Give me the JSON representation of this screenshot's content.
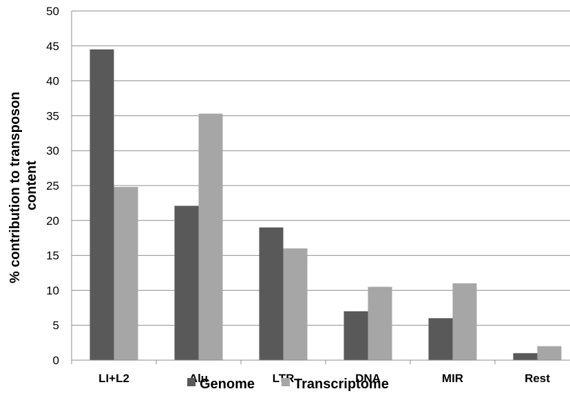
{
  "chart_data": {
    "type": "bar",
    "title": "",
    "xlabel": "",
    "ylabel_lines": [
      "% contribution to transposon",
      "content"
    ],
    "categories": [
      "LI+L2",
      "Alu",
      "LTR",
      "DNA",
      "MIR",
      "Rest"
    ],
    "series": [
      {
        "name": "Genome",
        "values": [
          44.5,
          22.1,
          19.0,
          7.0,
          6.0,
          1.0
        ]
      },
      {
        "name": "Transcriptome",
        "values": [
          24.8,
          35.3,
          16.0,
          10.5,
          11.0,
          2.0
        ]
      }
    ],
    "ylim": [
      0,
      50
    ],
    "yticks": [
      0,
      5,
      10,
      15,
      20,
      25,
      30,
      35,
      40,
      45,
      50
    ],
    "grid": true,
    "legend_position": "bottom",
    "colors": {
      "Genome": "#595959",
      "Transcriptome": "#a6a6a6",
      "grid": "#8c8c8c"
    }
  }
}
